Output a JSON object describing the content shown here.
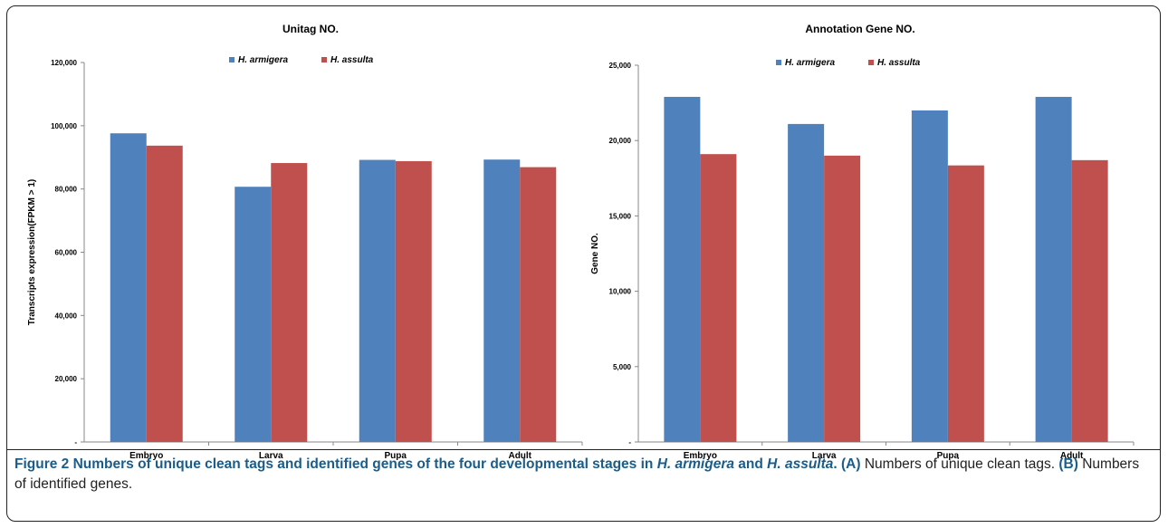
{
  "colors": {
    "armigera": "#4f81bd",
    "assulta": "#c0504d"
  },
  "chart_data": [
    {
      "type": "bar",
      "title": "Unitag NO.",
      "xlabel": "",
      "ylabel": "Transcripts expression(FPKM > 1)",
      "ylim": [
        0,
        120000
      ],
      "yticks": [
        "-",
        "20,000",
        "40,000",
        "60,000",
        "80,000",
        "100,000",
        "120,000"
      ],
      "categories": [
        "Embryo",
        "Larva",
        "Pupa",
        "Adult"
      ],
      "legend_position": "top-center",
      "series": [
        {
          "name": "H. armigera",
          "values": [
            97600,
            80700,
            89200,
            89300
          ]
        },
        {
          "name": "H. assulta",
          "values": [
            93700,
            88200,
            88800,
            86900
          ]
        }
      ]
    },
    {
      "type": "bar",
      "title": "Annotation Gene NO.",
      "xlabel": "",
      "ylabel": "Gene NO.",
      "ylim": [
        0,
        25000
      ],
      "yticks": [
        "-",
        "5,000",
        "10,000",
        "15,000",
        "20,000",
        "25,000"
      ],
      "categories": [
        "Embryo",
        "Larva",
        "Pupa",
        "Adult"
      ],
      "legend_position": "top-center",
      "series": [
        {
          "name": "H. armigera",
          "values": [
            22900,
            21100,
            22000,
            22900
          ]
        },
        {
          "name": "H. assulta",
          "values": [
            19100,
            19000,
            18350,
            18700
          ]
        }
      ]
    }
  ],
  "caption": {
    "figure_label": "Figure 2",
    "title_part1": " Numbers of unique clean tags and identified genes of the four developmental stages in ",
    "species1": "H. armigera",
    "title_and": " and ",
    "species2": "H. assulta",
    "title_end": ".",
    "label_a": " (A)",
    "text_a": " Numbers of unique clean tags.",
    "label_b": " (B)",
    "text_b": " Numbers of identified genes."
  }
}
